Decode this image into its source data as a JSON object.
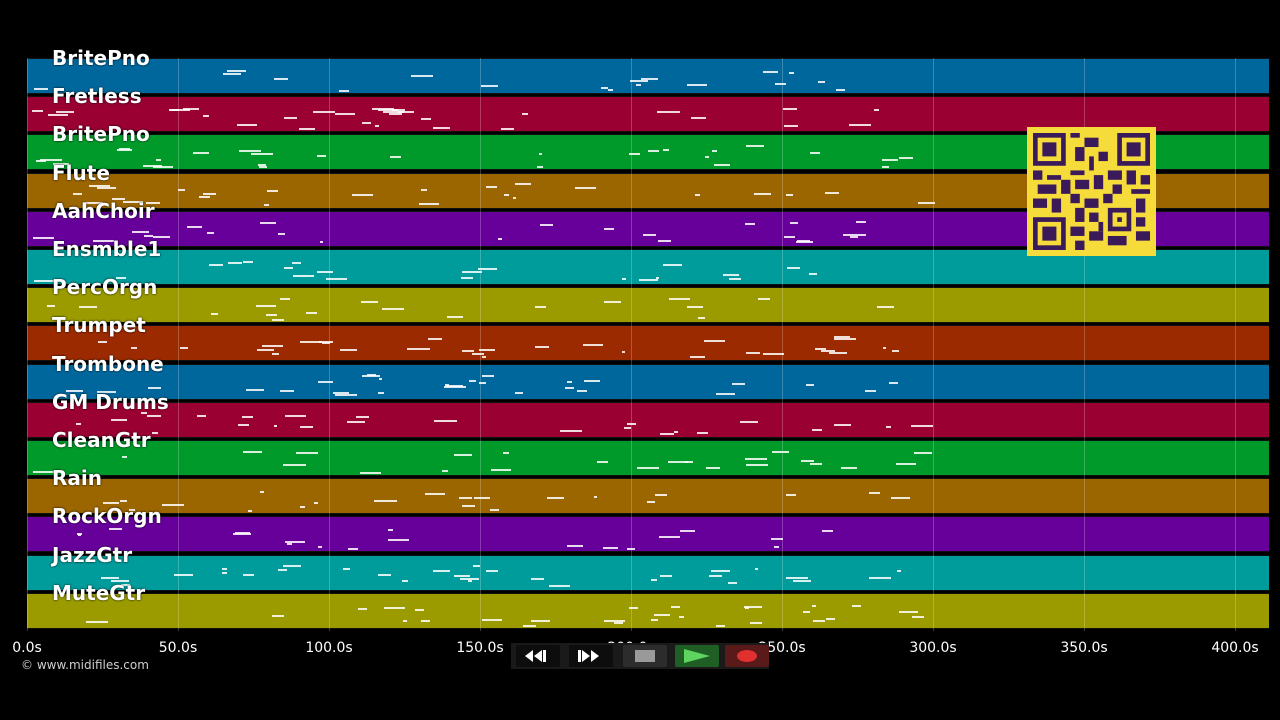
{
  "tracks": [
    {
      "name": "BritePno",
      "color": "#00679d"
    },
    {
      "name": "Fretless",
      "color": "#9b0033"
    },
    {
      "name": "BritePno",
      "color": "#009a2a"
    },
    {
      "name": "Flute",
      "color": "#9b6500"
    },
    {
      "name": "AahChoir",
      "color": "#67009b"
    },
    {
      "name": "Ensmble1",
      "color": "#009b9b"
    },
    {
      "name": "PercOrgn",
      "color": "#9b9b00"
    },
    {
      "name": "Trumpet",
      "color": "#9b2a00"
    },
    {
      "name": "Trombone",
      "color": "#00679d"
    },
    {
      "name": "GM Drums",
      "color": "#9b0033"
    },
    {
      "name": "CleanGtr",
      "color": "#009a2a"
    },
    {
      "name": "Rain",
      "color": "#9b6500"
    },
    {
      "name": "RockOrgn",
      "color": "#67009b"
    },
    {
      "name": "JazzGtr",
      "color": "#009b9b"
    },
    {
      "name": "MuteGtr",
      "color": "#9b9b00"
    }
  ],
  "timeline": {
    "ticks": [
      "0.0s",
      "50.0s",
      "100.0s",
      "150.0s",
      "200.0s",
      "250.0s",
      "300.0s",
      "350.0s",
      "400.0s"
    ],
    "max_seconds": 410
  },
  "copyright": "© www.midifiles.com",
  "transport": {
    "rewind_icon": "rewind-icon",
    "ffwd_icon": "fast-forward-icon",
    "stop_icon": "stop-icon",
    "play_icon": "play-icon",
    "record_icon": "record-icon"
  },
  "qr_color": "#f5dc3a"
}
